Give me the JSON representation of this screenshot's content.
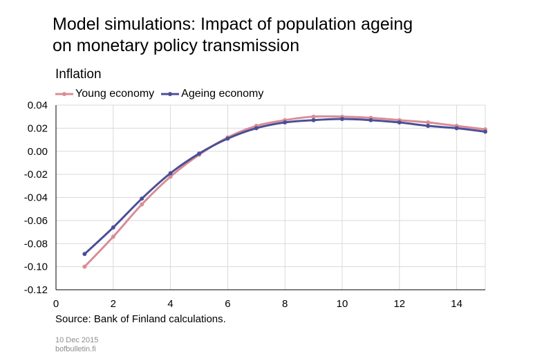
{
  "title_line1": "Model simulations: Impact of population ageing",
  "title_line2": "on monetary policy transmission",
  "footer": {
    "date": "10 Dec 2015",
    "site": "bofbulletin.fi"
  },
  "chart_data": {
    "type": "line",
    "title": "Inflation",
    "source": "Source: Bank of Finland calculations.",
    "xlabel": "",
    "ylabel": "",
    "xlim": [
      0,
      15
    ],
    "ylim": [
      -0.12,
      0.04
    ],
    "xticks": [
      0,
      2,
      4,
      6,
      8,
      10,
      12,
      14
    ],
    "yticks": [
      0.04,
      0.02,
      0.0,
      -0.02,
      -0.04,
      -0.06,
      -0.08,
      -0.1,
      -0.12
    ],
    "ytick_labels": [
      "0.04",
      "0.02",
      "0.00",
      "-0.02",
      "-0.04",
      "-0.06",
      "-0.08",
      "-0.10",
      "-0.12"
    ],
    "grid": true,
    "legend_position": "top-left",
    "x": [
      1,
      2,
      3,
      4,
      5,
      6,
      7,
      8,
      9,
      10,
      11,
      12,
      13,
      14,
      15
    ],
    "series": [
      {
        "name": "Young economy",
        "color": "#d98c96",
        "values": [
          -0.1,
          -0.074,
          -0.046,
          -0.022,
          -0.003,
          0.012,
          0.022,
          0.027,
          0.03,
          0.03,
          0.029,
          0.027,
          0.025,
          0.022,
          0.019
        ]
      },
      {
        "name": "Ageing economy",
        "color": "#4b4f96",
        "values": [
          -0.089,
          -0.066,
          -0.041,
          -0.019,
          -0.002,
          0.011,
          0.02,
          0.025,
          0.027,
          0.028,
          0.027,
          0.025,
          0.022,
          0.02,
          0.017
        ]
      }
    ]
  }
}
